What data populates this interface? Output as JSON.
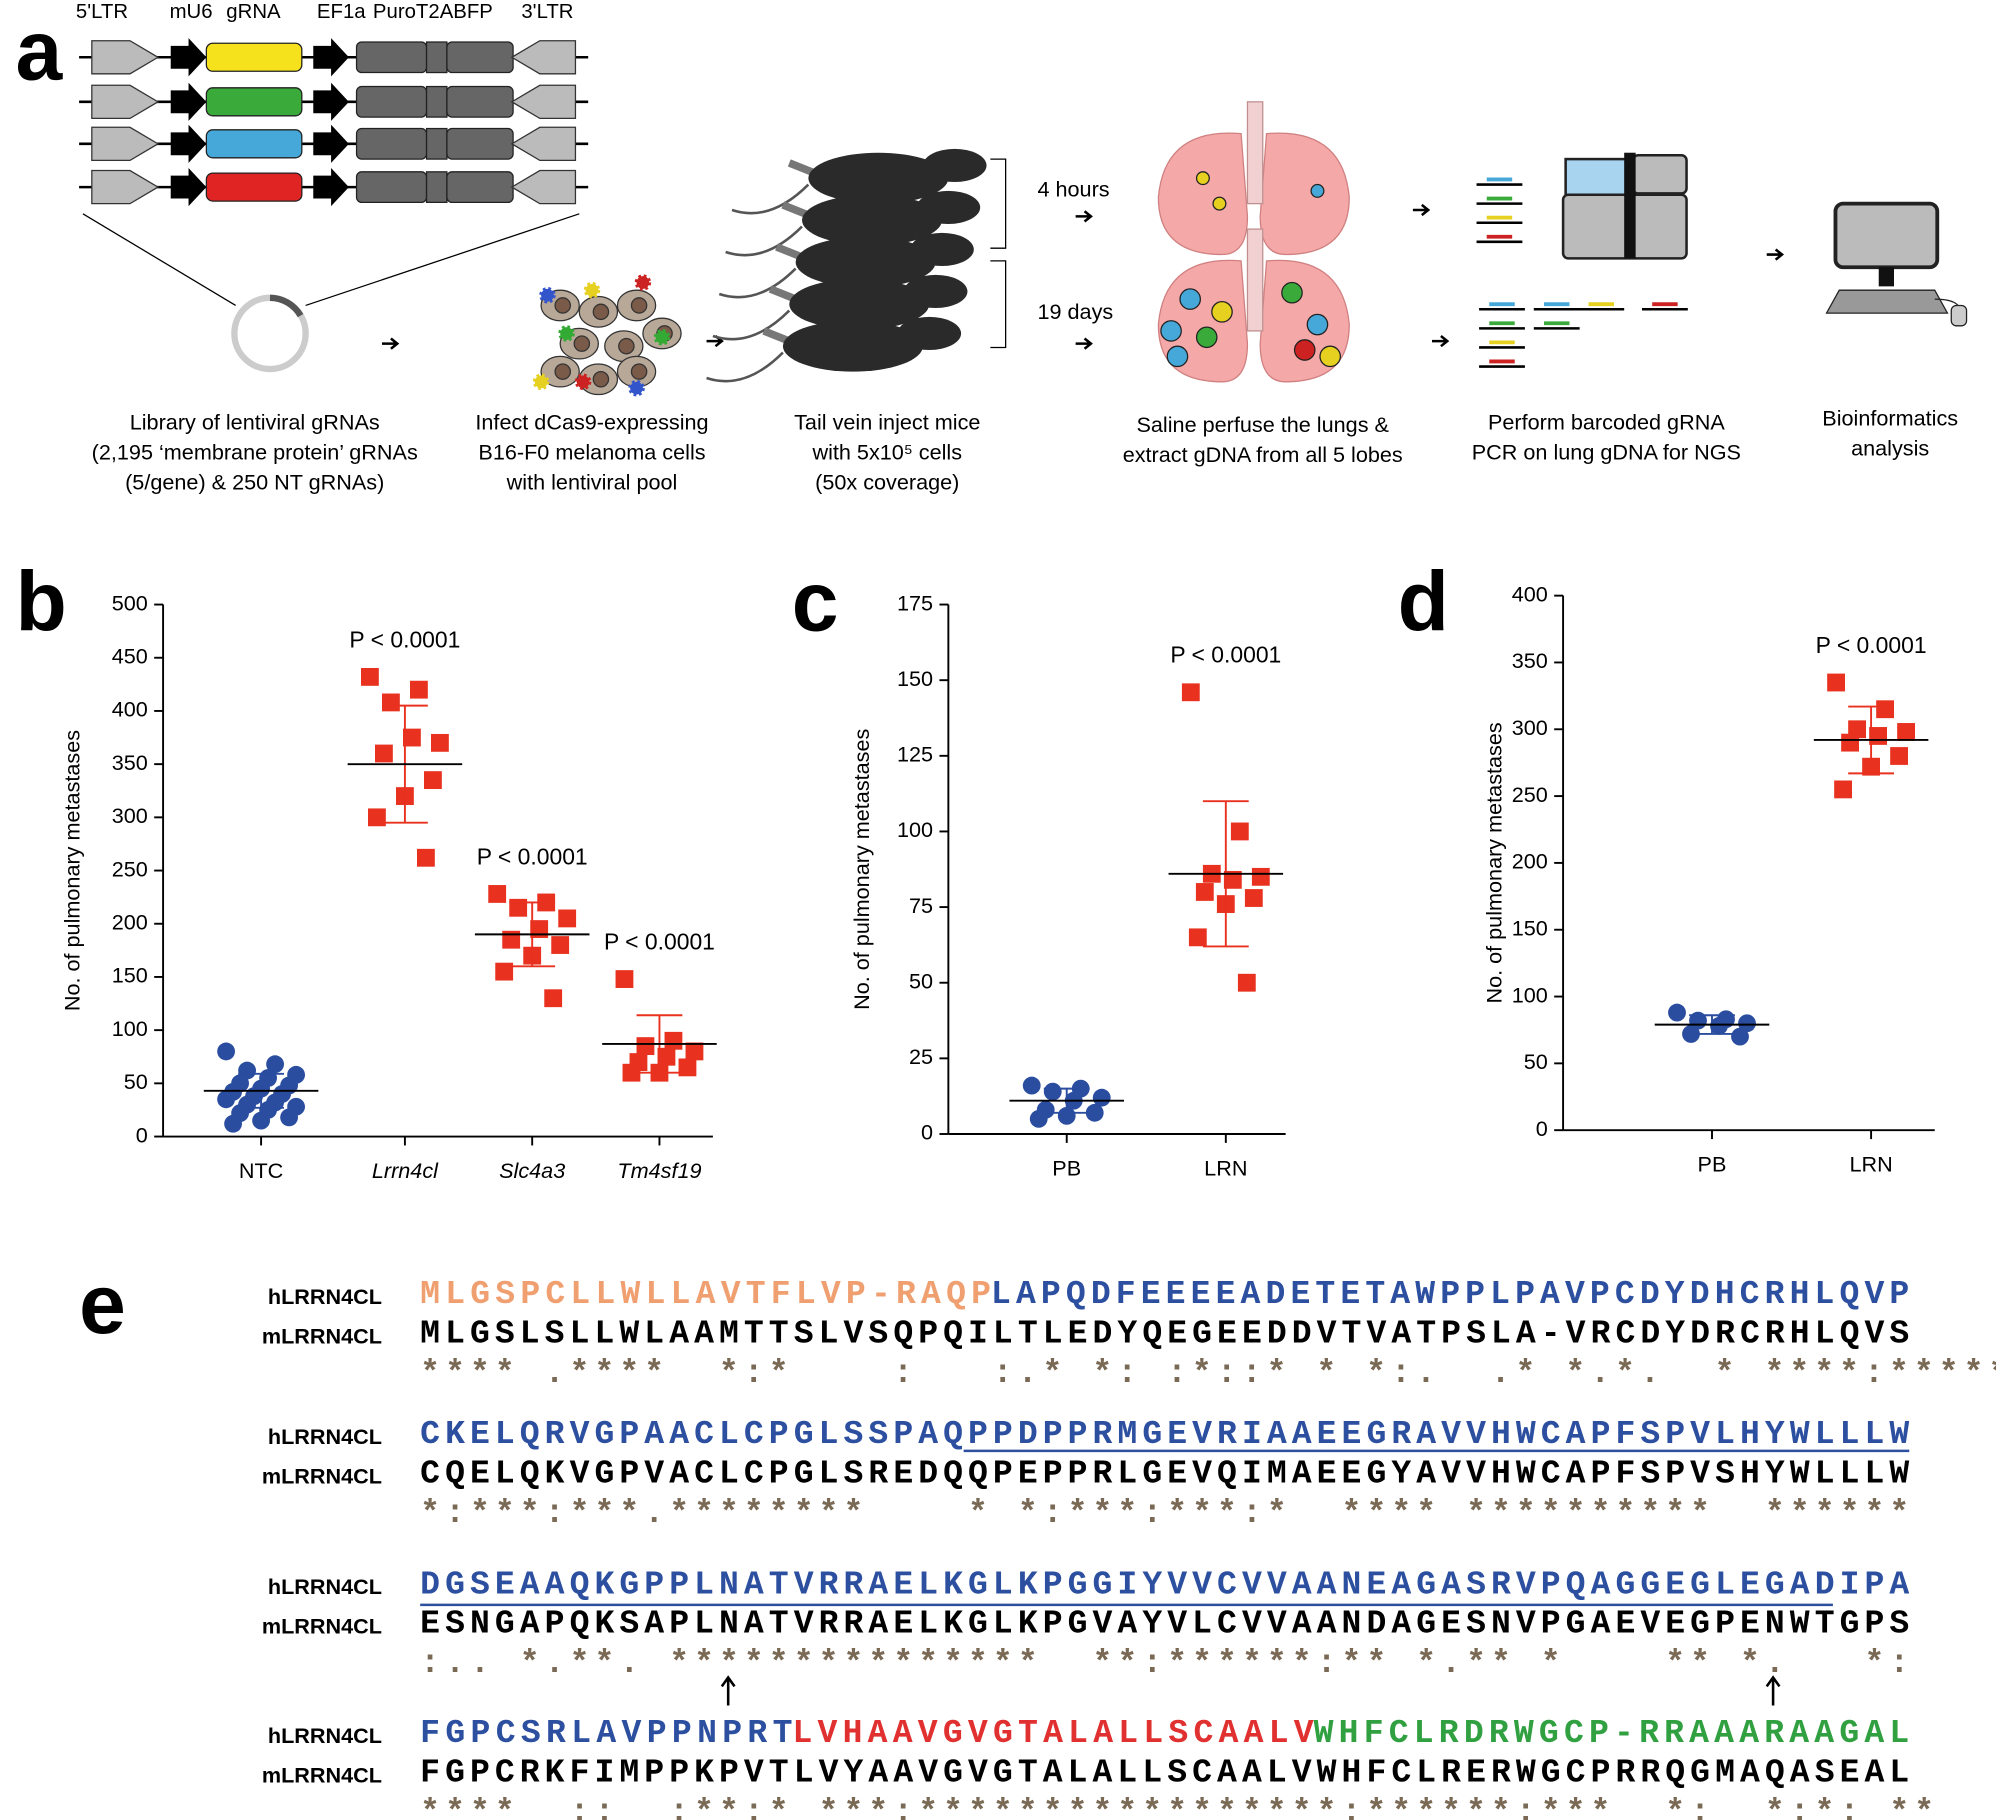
{
  "panel_letters": [
    "a",
    "b",
    "c",
    "d",
    "e"
  ],
  "panel_a": {
    "cassette_labels": [
      "5'LTR",
      "mU6",
      "gRNA",
      "EF1a",
      "PuroT2ABFP",
      "3'LTR"
    ],
    "timepoints": [
      "4 hours",
      "19 days"
    ],
    "captions": [
      [
        "Library of lentiviral gRNAs",
        "(2,195 ‘membrane protein’ gRNAs",
        "(5/gene) & 250 NT gRNAs)"
      ],
      [
        "Infect dCas9-expressing",
        "B16-F0 melanoma cells",
        "with lentiviral pool"
      ],
      [
        "Tail vein inject mice",
        "with  5x10⁵ cells",
        "(50x coverage)"
      ],
      [
        "Saline perfuse the lungs &",
        "extract gDNA from all 5 lobes"
      ],
      [
        "Perform barcoded gRNA",
        "PCR on lung gDNA for NGS"
      ],
      [
        "Bioinformatics",
        "analysis"
      ]
    ]
  },
  "chart_data": [
    {
      "type": "dot",
      "y_label": "No. of pulmonary metastases",
      "ylim": [
        0,
        500
      ],
      "yticks": [
        0,
        50,
        100,
        150,
        200,
        250,
        300,
        350,
        400,
        450,
        500
      ],
      "categories": [
        "NTC",
        "Lrrn4cl",
        "Slc4a3",
        "Tm4sf19"
      ],
      "italic": [
        false,
        true,
        true,
        true
      ],
      "groups": [
        {
          "color": "#2b4da0",
          "marker": "circle",
          "values": [
            80,
            68,
            62,
            58,
            55,
            50,
            48,
            45,
            42,
            40,
            38,
            35,
            32,
            30,
            28,
            25,
            22,
            18,
            15,
            12
          ],
          "mean": 43,
          "sd": 16
        },
        {
          "color": "#e8311f",
          "marker": "square",
          "values": [
            432,
            420,
            408,
            370,
            375,
            360,
            335,
            320,
            300,
            262
          ],
          "mean": 350,
          "sd": 55,
          "annotation": "P < 0.0001"
        },
        {
          "color": "#e8311f",
          "marker": "square",
          "values": [
            228,
            220,
            215,
            205,
            195,
            185,
            180,
            170,
            155,
            130
          ],
          "mean": 190,
          "sd": 30,
          "annotation": "P < 0.0001"
        },
        {
          "color": "#e8311f",
          "marker": "square",
          "values": [
            148,
            90,
            85,
            80,
            75,
            70,
            65,
            60,
            60
          ],
          "mean": 87,
          "sd": 27,
          "annotation": "P < 0.0001"
        }
      ]
    },
    {
      "type": "dot",
      "y_label": "No. of pulmonary metastases",
      "ylim": [
        0,
        175
      ],
      "yticks": [
        0,
        25,
        50,
        75,
        100,
        125,
        150,
        175
      ],
      "categories": [
        "PB",
        "LRN"
      ],
      "italic": [
        false,
        false
      ],
      "groups": [
        {
          "color": "#2b4da0",
          "marker": "circle",
          "values": [
            16,
            15,
            14,
            12,
            11,
            8,
            7,
            6,
            5
          ],
          "mean": 11,
          "sd": 4
        },
        {
          "color": "#e8311f",
          "marker": "square",
          "values": [
            146,
            100,
            86,
            85,
            84,
            80,
            78,
            76,
            65,
            50
          ],
          "mean": 86,
          "sd": 24,
          "annotation": "P < 0.0001"
        }
      ]
    },
    {
      "type": "dot",
      "y_label": "No. of pulmonary metastases",
      "ylim": [
        0,
        400
      ],
      "yticks": [
        0,
        50,
        100,
        150,
        200,
        250,
        300,
        350,
        400
      ],
      "categories": [
        "PB",
        "LRN"
      ],
      "italic": [
        false,
        false
      ],
      "groups": [
        {
          "color": "#2b4da0",
          "marker": "circle",
          "values": [
            88,
            83,
            82,
            80,
            78,
            72,
            70
          ],
          "mean": 79,
          "sd": 7
        },
        {
          "color": "#e8311f",
          "marker": "square",
          "values": [
            335,
            315,
            300,
            298,
            295,
            290,
            280,
            272,
            255
          ],
          "mean": 292,
          "sd": 25,
          "annotation": "P < 0.0001"
        }
      ]
    }
  ],
  "alignment": {
    "human_label": "hLRRN4CL",
    "mouse_label": "mLRRN4CL",
    "blocks": [
      {
        "human": [
          {
            "text": "MLGSPCLLWLLAVTFLVP-RAQP",
            "color": "#f0a070"
          },
          {
            "text": "LAPQDFEEEEADETETAWPPLPAVPCDYDHCRHLQVP",
            "color": "#2c4fa0"
          }
        ],
        "mouse": "MLGSLSLLWLAAMTTSLVSQPQILTLEDYQEGEEDDVTVATPSLA-VRCDYDRCRHLQVS",
        "conservation": "**** .****  *:*    :   :.* *: :*::* * *:.  .* *.*.  * ****:******."
      },
      {
        "human": [
          {
            "text": "CKELQRVGPAACLCPGLSSPAQPPDPPRMGEVRIAAEEGRAVVHWCAPFSPVLHYWLLLW",
            "color": "#2c4fa0"
          }
        ],
        "mouse": "CQELQKVGPVACLCPGLSREDQQPEPPRLGEVQIMAEEGYAVVHWCAPFSPVSHYWLLLW",
        "conservation": "*:***:***.********    * *:***:***:*  **** **********  ******"
      },
      {
        "human": [
          {
            "text": "DGSEAAQKGPPLNATVRRAELKGLKPGGIYVVCVVAANEAGASRVPQAGGEGLEGADIPA",
            "color": "#2c4fa0"
          }
        ],
        "mouse": "ESNGAPQKSAPLNATVRRAELKGLKPGVAYVLCVVAANDAGESNVPGAEVEGPENWTGPS",
        "conservation": ":.. *.**. ***************  **:******:** *.** *    ** *.   *:"
      },
      {
        "human": [
          {
            "text": "FGPCSRLAVPPNPRT",
            "color": "#2c4fa0"
          },
          {
            "text": "LVHAAVGVGTALALLSCAALV",
            "color": "#e03030"
          },
          {
            "text": "WHFCLRDRWGCP-RRAAARAAGAL",
            "color": "#30a040"
          }
        ],
        "mouse": "FGPCRKFIMPPKPVTLVYAAVGVGTALALLSCAALVWHFCLRERWGCPRRQGMAQASEAL",
        "conservation": "****  ::  :**:* ***:*****************:******:***  *:  *:*: **"
      }
    ]
  }
}
